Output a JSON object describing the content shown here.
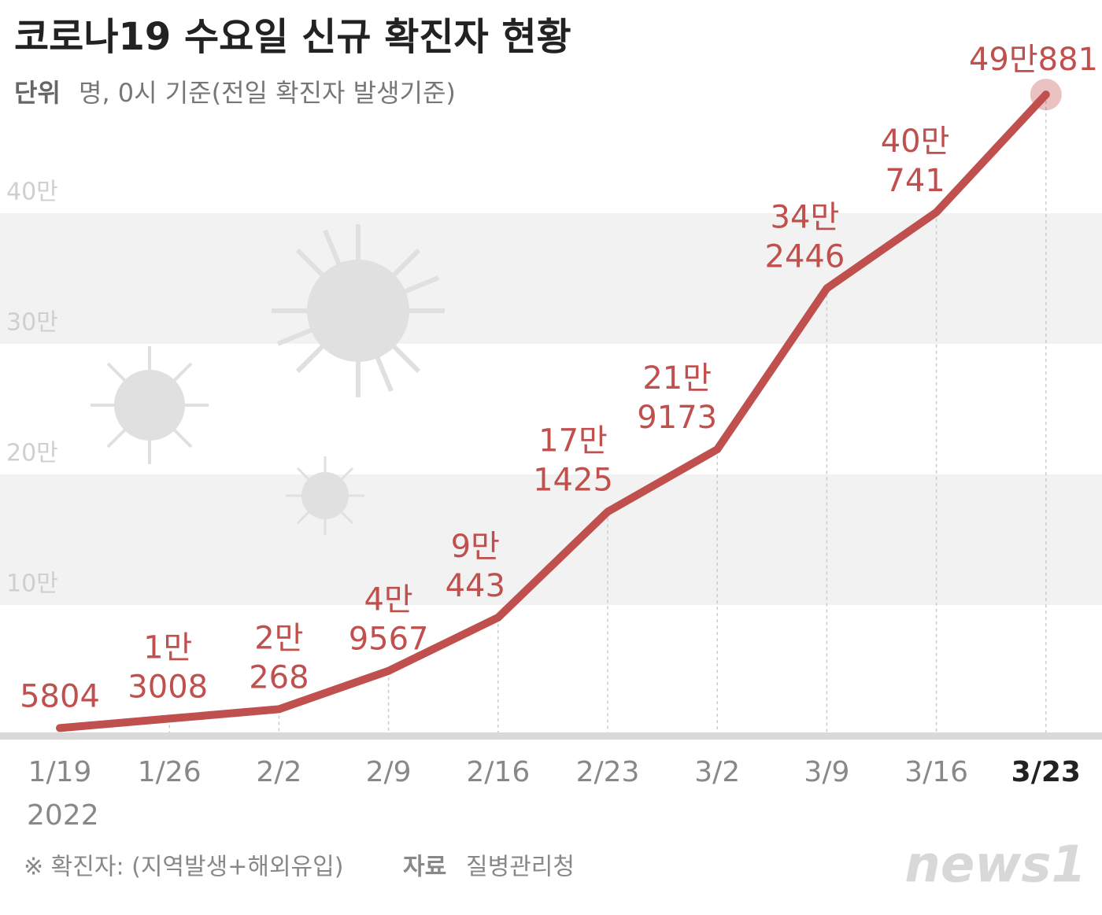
{
  "chart_data": {
    "type": "line",
    "title": "코로나19 수요일 신규 확진자 현황",
    "unit_label": "단위",
    "subtitle": "명, 0시 기준(전일 확진자 발생기준)",
    "categories": [
      "1/19",
      "1/26",
      "2/2",
      "2/9",
      "2/16",
      "2/23",
      "3/2",
      "3/9",
      "3/16",
      "3/23"
    ],
    "year": "2022",
    "series": [
      {
        "name": "신규 확진자",
        "color": "#c0504d",
        "values": [
          5804,
          13008,
          20268,
          49567,
          90443,
          171425,
          219173,
          342446,
          400741,
          490881
        ],
        "value_labels": [
          [
            "5804"
          ],
          [
            "1만",
            "3008"
          ],
          [
            "2만",
            "268"
          ],
          [
            "4만",
            "9567"
          ],
          [
            "9만",
            "443"
          ],
          [
            "17만",
            "1425"
          ],
          [
            "21만",
            "9173"
          ],
          [
            "34만",
            "2446"
          ],
          [
            "40만",
            "741"
          ],
          [
            "49만881"
          ]
        ]
      }
    ],
    "ylim": [
      0,
      500000
    ],
    "yticks": [
      {
        "value": 100000,
        "label": "10만"
      },
      {
        "value": 200000,
        "label": "20만"
      },
      {
        "value": 300000,
        "label": "30만"
      },
      {
        "value": 400000,
        "label": "40만"
      }
    ],
    "grid": "bands",
    "note": "※ 확진자: (지역발생+해외유입)",
    "source_label": "자료",
    "source": "질병관리청",
    "logo": "news1"
  }
}
